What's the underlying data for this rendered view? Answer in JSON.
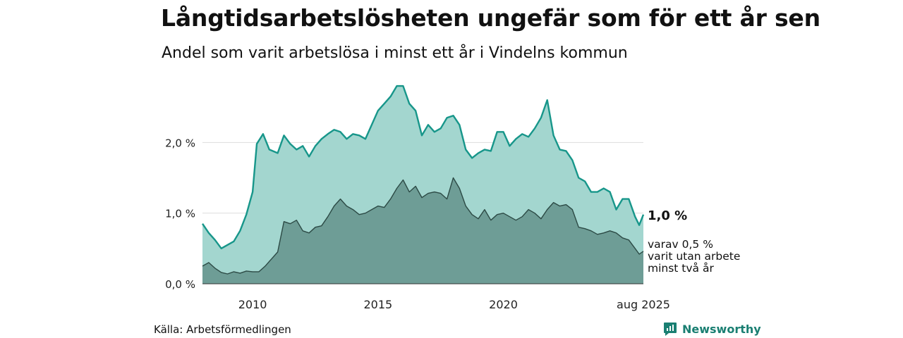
{
  "header": {
    "title": "Långtidsarbetslösheten ungefär som för ett år sen",
    "subtitle": "Andel som varit arbetslösa i minst ett år i Vindelns kommun"
  },
  "footer": {
    "source": "Källa: Arbetsförmedlingen",
    "brand": "Newsworthy"
  },
  "chart_data": {
    "type": "area",
    "x_ticks": [
      "2010",
      "2015",
      "2020",
      "aug 2025"
    ],
    "y_ticks": [
      "0,0 %",
      "1,0 %",
      "2,0 %"
    ],
    "ylim": [
      0,
      3.0
    ],
    "xlim": [
      "2008-01",
      "2025-08"
    ],
    "grid": true,
    "annotations": {
      "total_label": "1,0 %",
      "sub_label": [
        "varav 0,5 %",
        "varit utan arbete",
        "minst två år"
      ]
    },
    "colors": {
      "total_fill": "#a3d6cf",
      "total_line": "#17968a",
      "sub_fill": "#6e9d96",
      "sub_line": "#2c4a45",
      "grid": "#dddddd"
    },
    "series": [
      {
        "key": "total",
        "points": [
          [
            "2008-01",
            0.85
          ],
          [
            "2008-04",
            0.72
          ],
          [
            "2008-07",
            0.62
          ],
          [
            "2008-10",
            0.5
          ],
          [
            "2009-01",
            0.55
          ],
          [
            "2009-04",
            0.6
          ],
          [
            "2009-07",
            0.75
          ],
          [
            "2009-10",
            0.98
          ],
          [
            "2010-01",
            1.3
          ],
          [
            "2010-03",
            1.98
          ],
          [
            "2010-06",
            2.12
          ],
          [
            "2010-09",
            1.9
          ],
          [
            "2011-01",
            1.85
          ],
          [
            "2011-04",
            2.1
          ],
          [
            "2011-07",
            1.98
          ],
          [
            "2011-10",
            1.9
          ],
          [
            "2012-01",
            1.95
          ],
          [
            "2012-04",
            1.8
          ],
          [
            "2012-07",
            1.95
          ],
          [
            "2012-10",
            2.05
          ],
          [
            "2013-01",
            2.12
          ],
          [
            "2013-04",
            2.18
          ],
          [
            "2013-07",
            2.15
          ],
          [
            "2013-10",
            2.05
          ],
          [
            "2014-01",
            2.12
          ],
          [
            "2014-04",
            2.1
          ],
          [
            "2014-07",
            2.05
          ],
          [
            "2014-10",
            2.25
          ],
          [
            "2015-01",
            2.45
          ],
          [
            "2015-04",
            2.55
          ],
          [
            "2015-07",
            2.65
          ],
          [
            "2015-10",
            2.8
          ],
          [
            "2016-01",
            2.8
          ],
          [
            "2016-04",
            2.55
          ],
          [
            "2016-07",
            2.45
          ],
          [
            "2016-10",
            2.1
          ],
          [
            "2017-01",
            2.25
          ],
          [
            "2017-04",
            2.15
          ],
          [
            "2017-07",
            2.2
          ],
          [
            "2017-10",
            2.35
          ],
          [
            "2018-01",
            2.38
          ],
          [
            "2018-04",
            2.25
          ],
          [
            "2018-07",
            1.9
          ],
          [
            "2018-10",
            1.78
          ],
          [
            "2019-01",
            1.85
          ],
          [
            "2019-04",
            1.9
          ],
          [
            "2019-07",
            1.88
          ],
          [
            "2019-10",
            2.15
          ],
          [
            "2020-01",
            2.15
          ],
          [
            "2020-04",
            1.95
          ],
          [
            "2020-07",
            2.05
          ],
          [
            "2020-10",
            2.12
          ],
          [
            "2021-01",
            2.08
          ],
          [
            "2021-04",
            2.2
          ],
          [
            "2021-07",
            2.35
          ],
          [
            "2021-10",
            2.6
          ],
          [
            "2022-01",
            2.1
          ],
          [
            "2022-04",
            1.9
          ],
          [
            "2022-07",
            1.88
          ],
          [
            "2022-10",
            1.75
          ],
          [
            "2023-01",
            1.5
          ],
          [
            "2023-04",
            1.45
          ],
          [
            "2023-07",
            1.3
          ],
          [
            "2023-10",
            1.3
          ],
          [
            "2024-01",
            1.35
          ],
          [
            "2024-04",
            1.3
          ],
          [
            "2024-07",
            1.05
          ],
          [
            "2024-10",
            1.2
          ],
          [
            "2025-01",
            1.2
          ],
          [
            "2025-04",
            0.95
          ],
          [
            "2025-06",
            0.83
          ],
          [
            "2025-08",
            0.98
          ]
        ]
      },
      {
        "key": "sub",
        "points": [
          [
            "2008-01",
            0.25
          ],
          [
            "2008-04",
            0.3
          ],
          [
            "2008-07",
            0.22
          ],
          [
            "2008-10",
            0.16
          ],
          [
            "2009-01",
            0.14
          ],
          [
            "2009-04",
            0.17
          ],
          [
            "2009-07",
            0.15
          ],
          [
            "2009-10",
            0.18
          ],
          [
            "2010-01",
            0.17
          ],
          [
            "2010-04",
            0.17
          ],
          [
            "2010-07",
            0.25
          ],
          [
            "2010-10",
            0.35
          ],
          [
            "2011-01",
            0.45
          ],
          [
            "2011-04",
            0.88
          ],
          [
            "2011-07",
            0.85
          ],
          [
            "2011-10",
            0.9
          ],
          [
            "2012-01",
            0.75
          ],
          [
            "2012-04",
            0.72
          ],
          [
            "2012-07",
            0.8
          ],
          [
            "2012-10",
            0.82
          ],
          [
            "2013-01",
            0.95
          ],
          [
            "2013-04",
            1.1
          ],
          [
            "2013-07",
            1.2
          ],
          [
            "2013-10",
            1.1
          ],
          [
            "2014-01",
            1.05
          ],
          [
            "2014-04",
            0.98
          ],
          [
            "2014-07",
            1.0
          ],
          [
            "2014-10",
            1.05
          ],
          [
            "2015-01",
            1.1
          ],
          [
            "2015-04",
            1.08
          ],
          [
            "2015-07",
            1.2
          ],
          [
            "2015-10",
            1.35
          ],
          [
            "2016-01",
            1.47
          ],
          [
            "2016-04",
            1.3
          ],
          [
            "2016-07",
            1.38
          ],
          [
            "2016-10",
            1.22
          ],
          [
            "2017-01",
            1.28
          ],
          [
            "2017-04",
            1.3
          ],
          [
            "2017-07",
            1.28
          ],
          [
            "2017-10",
            1.2
          ],
          [
            "2018-01",
            1.5
          ],
          [
            "2018-04",
            1.35
          ],
          [
            "2018-07",
            1.1
          ],
          [
            "2018-10",
            0.98
          ],
          [
            "2019-01",
            0.92
          ],
          [
            "2019-04",
            1.05
          ],
          [
            "2019-07",
            0.9
          ],
          [
            "2019-10",
            0.98
          ],
          [
            "2020-01",
            1.0
          ],
          [
            "2020-04",
            0.95
          ],
          [
            "2020-07",
            0.9
          ],
          [
            "2020-10",
            0.95
          ],
          [
            "2021-01",
            1.05
          ],
          [
            "2021-04",
            1.0
          ],
          [
            "2021-07",
            0.92
          ],
          [
            "2021-10",
            1.05
          ],
          [
            "2022-01",
            1.15
          ],
          [
            "2022-04",
            1.1
          ],
          [
            "2022-07",
            1.12
          ],
          [
            "2022-10",
            1.05
          ],
          [
            "2023-01",
            0.8
          ],
          [
            "2023-04",
            0.78
          ],
          [
            "2023-07",
            0.75
          ],
          [
            "2023-10",
            0.7
          ],
          [
            "2024-01",
            0.72
          ],
          [
            "2024-04",
            0.75
          ],
          [
            "2024-07",
            0.72
          ],
          [
            "2024-10",
            0.65
          ],
          [
            "2025-01",
            0.62
          ],
          [
            "2025-04",
            0.5
          ],
          [
            "2025-06",
            0.42
          ],
          [
            "2025-08",
            0.46
          ]
        ]
      }
    ]
  }
}
